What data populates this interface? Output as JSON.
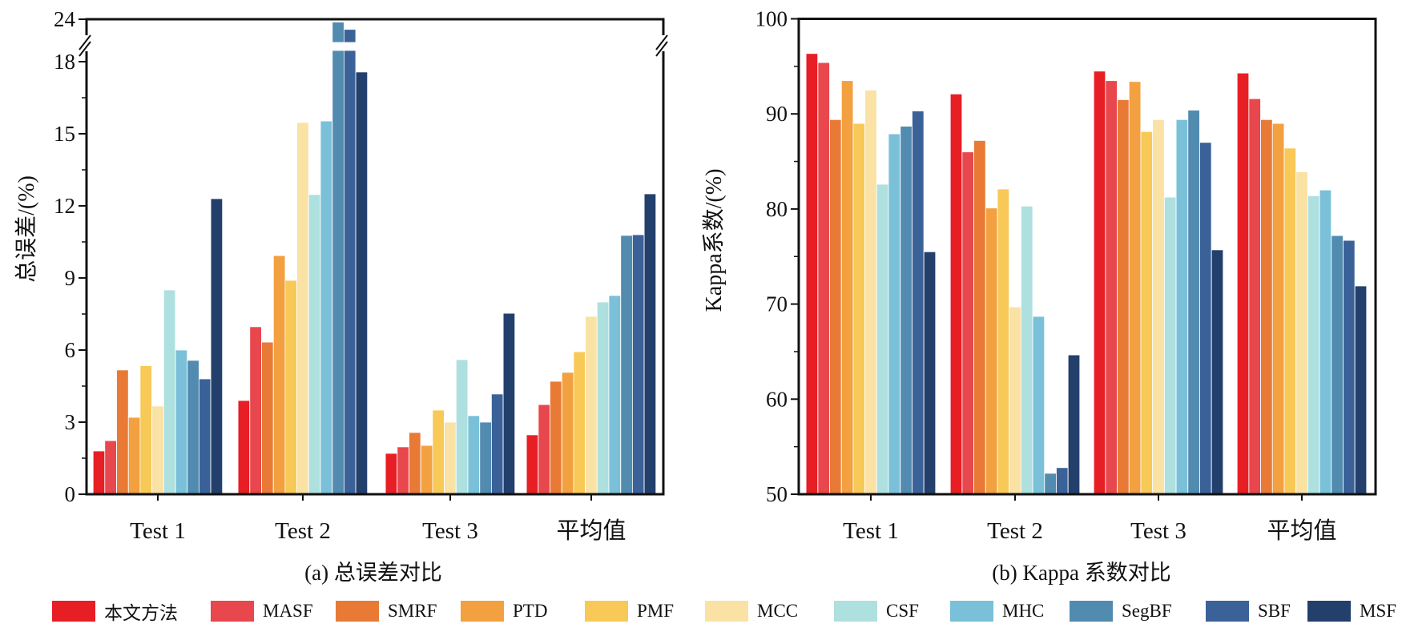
{
  "chart_data": [
    {
      "type": "bar",
      "id": "a",
      "title": "(a) 总误差对比",
      "xlabel": "",
      "ylabel": "总误差/(%)",
      "categories": [
        "Test 1",
        "Test 2",
        "Test 3",
        "平均值"
      ],
      "ylim": [
        0,
        24
      ],
      "axis_break": [
        18,
        24
      ],
      "yticks": [
        0,
        3,
        6,
        9,
        12,
        15,
        18,
        24
      ],
      "ytick_labels": [
        "0",
        "3",
        "6",
        "9",
        "12",
        "15",
        "18",
        "24"
      ],
      "grid": false,
      "series": [
        {
          "name": "本文方法",
          "color": "#e81e25",
          "values": [
            1.8,
            3.9,
            1.7,
            2.47
          ]
        },
        {
          "name": "MASF",
          "color": "#e8474d",
          "values": [
            2.23,
            6.97,
            1.97,
            3.73
          ]
        },
        {
          "name": "SMRF",
          "color": "#e87a36",
          "values": [
            5.17,
            6.33,
            2.57,
            4.7
          ]
        },
        {
          "name": "PTD",
          "color": "#f3a040",
          "values": [
            3.2,
            9.93,
            2.03,
            5.07
          ]
        },
        {
          "name": "PMF",
          "color": "#f8c957",
          "values": [
            5.35,
            8.9,
            3.5,
            5.93
          ]
        },
        {
          "name": "MCC",
          "color": "#fae2a5",
          "values": [
            3.67,
            15.47,
            3.0,
            7.4
          ]
        },
        {
          "name": "CSF",
          "color": "#aee0df",
          "values": [
            8.5,
            12.47,
            5.6,
            8.0
          ]
        },
        {
          "name": "MHC",
          "color": "#79c0d8",
          "values": [
            6.0,
            15.53,
            3.27,
            8.27
          ]
        },
        {
          "name": "SegBF",
          "color": "#528bb0",
          "values": [
            5.57,
            23.8,
            3.0,
            10.77
          ]
        },
        {
          "name": "SBF",
          "color": "#3a6299",
          "values": [
            4.8,
            23.3,
            4.17,
            10.8
          ]
        },
        {
          "name": "MSF",
          "color": "#233f6c",
          "values": [
            12.3,
            17.57,
            7.53,
            12.5
          ]
        }
      ]
    },
    {
      "type": "bar",
      "id": "b",
      "title": "(b) Kappa 系数对比",
      "xlabel": "",
      "ylabel": "Kappa系数/(%)",
      "categories": [
        "Test 1",
        "Test 2",
        "Test 3",
        "平均值"
      ],
      "ylim": [
        50,
        100
      ],
      "yticks": [
        50,
        60,
        70,
        80,
        90,
        100
      ],
      "ytick_labels": [
        "50",
        "60",
        "70",
        "80",
        "90",
        "100"
      ],
      "grid": false,
      "series": [
        {
          "name": "本文方法",
          "color": "#e81e25",
          "values": [
            96.35,
            92.1,
            94.5,
            94.3
          ]
        },
        {
          "name": "MASF",
          "color": "#e8474d",
          "values": [
            95.4,
            86.0,
            93.5,
            91.6
          ]
        },
        {
          "name": "SMRF",
          "color": "#e87a36",
          "values": [
            89.4,
            87.2,
            91.5,
            89.4
          ]
        },
        {
          "name": "PTD",
          "color": "#f3a040",
          "values": [
            93.5,
            80.1,
            93.4,
            89.0
          ]
        },
        {
          "name": "PMF",
          "color": "#f8c957",
          "values": [
            89.0,
            82.1,
            88.15,
            86.4
          ]
        },
        {
          "name": "MCC",
          "color": "#fae2a5",
          "values": [
            92.5,
            69.7,
            89.4,
            83.9
          ]
        },
        {
          "name": "CSF",
          "color": "#aee0df",
          "values": [
            82.6,
            80.3,
            81.25,
            81.4
          ]
        },
        {
          "name": "MHC",
          "color": "#79c0d8",
          "values": [
            87.9,
            68.7,
            89.4,
            82.0
          ]
        },
        {
          "name": "SegBF",
          "color": "#528bb0",
          "values": [
            88.7,
            52.2,
            90.4,
            77.2
          ]
        },
        {
          "name": "SBF",
          "color": "#3a6299",
          "values": [
            90.3,
            52.8,
            87.0,
            76.7
          ]
        },
        {
          "name": "MSF",
          "color": "#233f6c",
          "values": [
            75.5,
            64.65,
            75.7,
            71.9
          ]
        }
      ]
    }
  ],
  "legend": {
    "placement": "bottom",
    "items": [
      {
        "label": "本文方法",
        "color": "#e81e25"
      },
      {
        "label": "MASF",
        "color": "#e8474d"
      },
      {
        "label": "SMRF",
        "color": "#e87a36"
      },
      {
        "label": "PTD",
        "color": "#f3a040"
      },
      {
        "label": "PMF",
        "color": "#f8c957"
      },
      {
        "label": "MCC",
        "color": "#fae2a5"
      },
      {
        "label": "CSF",
        "color": "#aee0df"
      },
      {
        "label": "MHC",
        "color": "#79c0d8"
      },
      {
        "label": "SegBF",
        "color": "#528bb0"
      },
      {
        "label": "SBF",
        "color": "#3a6299"
      },
      {
        "label": "MSF",
        "color": "#233f6c"
      }
    ]
  }
}
